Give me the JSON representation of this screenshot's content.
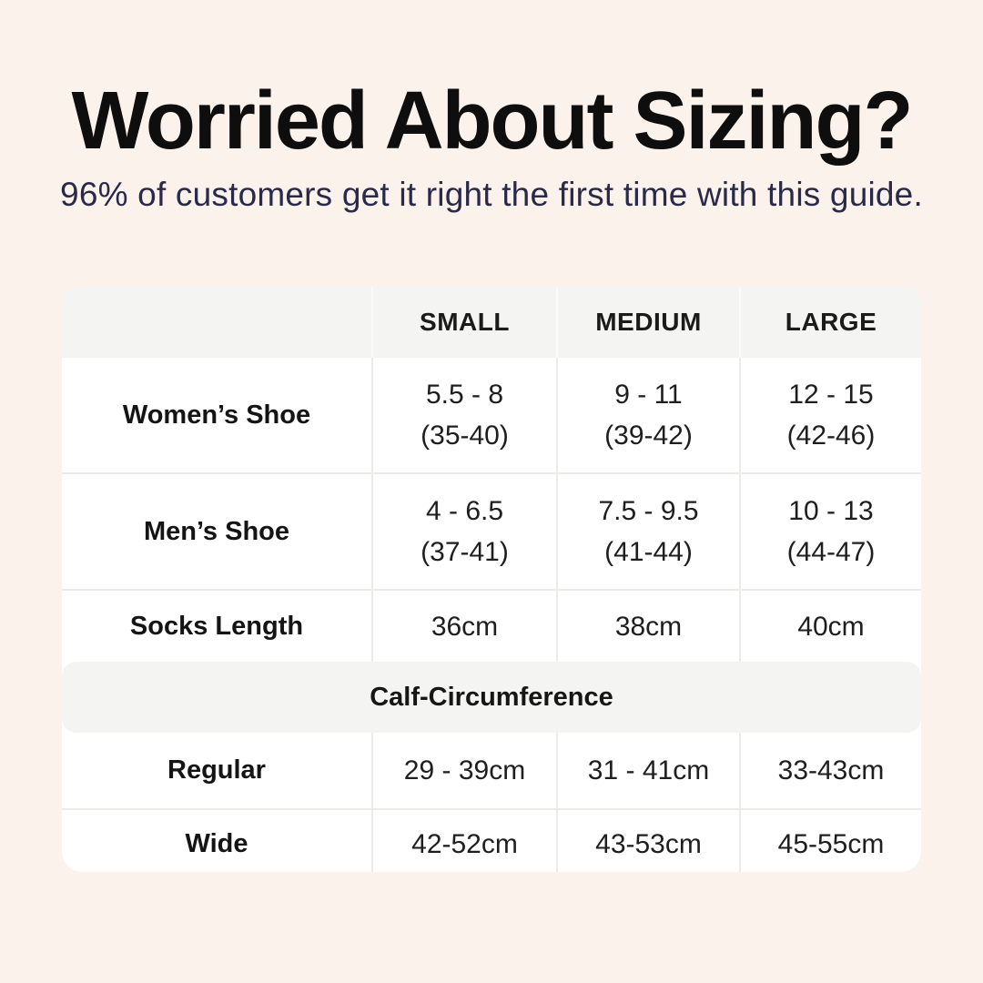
{
  "page": {
    "title": "Worried About Sizing?",
    "subtitle": "96% of customers get it right the first time with this guide."
  },
  "table": {
    "size_headers": [
      "SMALL",
      "MEDIUM",
      "LARGE"
    ],
    "rows": [
      {
        "label": "Women’s Shoe",
        "values": [
          [
            "5.5 - 8",
            "(35-40)"
          ],
          [
            "9 - 11",
            "(39-42)"
          ],
          [
            "12 - 15",
            "(42-46)"
          ]
        ]
      },
      {
        "label": "Men’s Shoe",
        "values": [
          [
            "4 - 6.5",
            "(37-41)"
          ],
          [
            "7.5 - 9.5",
            "(41-44)"
          ],
          [
            "10 - 13",
            "(44-47)"
          ]
        ]
      },
      {
        "label": "Socks Length",
        "values": [
          [
            "36cm"
          ],
          [
            "38cm"
          ],
          [
            "40cm"
          ]
        ]
      }
    ],
    "section_header": "Calf-Circumference",
    "section_rows": [
      {
        "label": "Regular",
        "values": [
          [
            "29 - 39cm"
          ],
          [
            "31 - 41cm"
          ],
          [
            "33-43cm"
          ]
        ]
      },
      {
        "label": "Wide",
        "values": [
          [
            "42-52cm"
          ],
          [
            "43-53cm"
          ],
          [
            "45-55cm"
          ]
        ]
      }
    ]
  },
  "colors": {
    "page_background": "#fcf2ec",
    "card_background": "#ffffff",
    "header_band_background": "#f4f4f2",
    "divider": "#edebe8",
    "title_text": "#0e0e0e",
    "subtitle_text": "#29294a",
    "table_text": "#1d1d1d"
  }
}
